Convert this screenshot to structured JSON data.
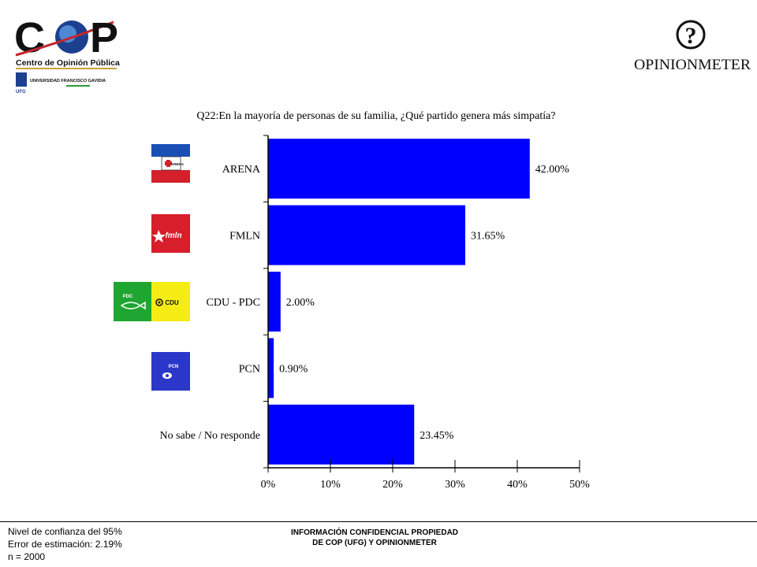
{
  "header": {
    "cop_logo_text": "C   P",
    "cop_subtitle": "Centro de Opinión Pública",
    "university": "UNIVERSIDAD FRANCISCO GAVIDIA",
    "university_abbr": "UFG",
    "opinionmeter_logo": "OPINIONMETER",
    "opinionmeter_symbol": "?"
  },
  "flags": {
    "arena": "ARENA",
    "fmln": "fmln",
    "pdc": "PDC",
    "cdu": "CDU",
    "pcn": "PCN"
  },
  "chart_data": {
    "type": "bar",
    "orientation": "horizontal",
    "title": "Q22:En la mayoría de personas de su familia, ¿Qué partido genera más simpatía?",
    "categories": [
      "ARENA",
      "FMLN",
      "CDU - PDC",
      "PCN",
      "No sabe / No responde"
    ],
    "values": [
      42.0,
      31.65,
      2.0,
      0.9,
      23.45
    ],
    "value_labels": [
      "42.00%",
      "31.65%",
      "2.00%",
      "0.90%",
      "23.45%"
    ],
    "xlim": [
      0,
      50
    ],
    "xticks": [
      "0%",
      "10%",
      "20%",
      "30%",
      "40%",
      "50%"
    ],
    "xlabel": "",
    "ylabel": "",
    "grid": false,
    "bar_color": "#0000ff"
  },
  "footer": {
    "confidence": "Nivel de confianza del 95%",
    "error": "Error de estimación: 2.19%",
    "sample": "n = 2000",
    "confidential_line1": "INFORMACIÓN CONFIDENCIAL PROPIEDAD",
    "confidential_line2": "DE COP (UFG) Y OPINIONMETER"
  }
}
